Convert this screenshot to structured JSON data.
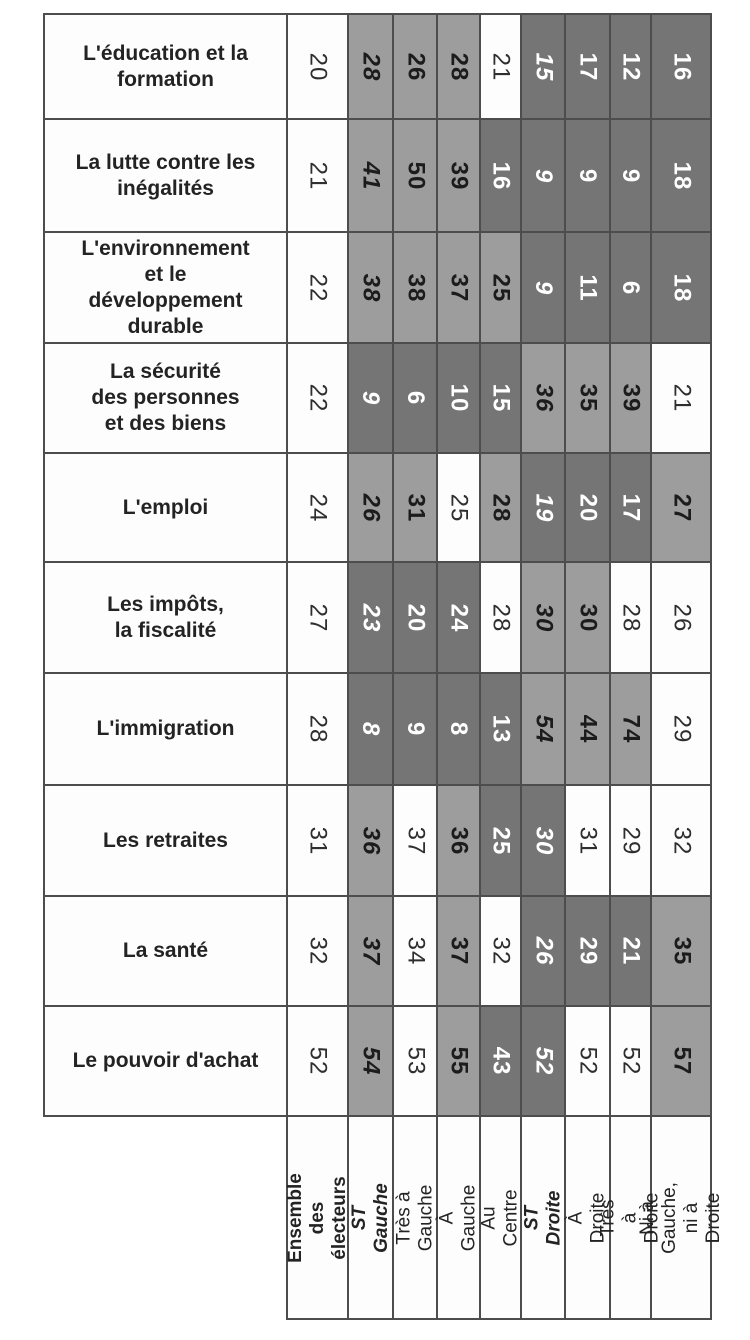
{
  "table": {
    "shading": {
      "higher_bg": "#9d9d9d",
      "higher_text": "#1c1c1c",
      "lower_bg": "#757575",
      "lower_text": "#ffffff",
      "plain_bg": "#fdfdfd",
      "border": "#4d4d4d"
    },
    "columns": [
      {
        "label": "Ensemble\ndes électeurs",
        "bold": true,
        "italic": false
      },
      {
        "label": "ST Gauche",
        "bold": true,
        "italic": true
      },
      {
        "label": "Très à Gauche",
        "bold": false,
        "italic": false
      },
      {
        "label": "À Gauche",
        "bold": false,
        "italic": false
      },
      {
        "label": "Au Centre",
        "bold": false,
        "italic": false
      },
      {
        "label": "ST Droite",
        "bold": true,
        "italic": true
      },
      {
        "label": "À Droite",
        "bold": false,
        "italic": false
      },
      {
        "label": "Très à Droite",
        "bold": false,
        "italic": false
      },
      {
        "label": "Ni à Gauche,\nni à Droite",
        "bold": false,
        "italic": false
      }
    ],
    "rows": [
      {
        "label": "L'éducation et la\nformation",
        "values": [
          {
            "v": "20",
            "s": "n"
          },
          {
            "v": "28",
            "s": "h"
          },
          {
            "v": "26",
            "s": "h"
          },
          {
            "v": "28",
            "s": "h"
          },
          {
            "v": "21",
            "s": "n"
          },
          {
            "v": "15",
            "s": "l"
          },
          {
            "v": "17",
            "s": "l"
          },
          {
            "v": "12",
            "s": "l"
          },
          {
            "v": "16",
            "s": "l"
          }
        ]
      },
      {
        "label": "La lutte contre les\ninégalités",
        "values": [
          {
            "v": "21",
            "s": "n"
          },
          {
            "v": "41",
            "s": "h"
          },
          {
            "v": "50",
            "s": "h"
          },
          {
            "v": "39",
            "s": "h"
          },
          {
            "v": "16",
            "s": "l"
          },
          {
            "v": "9",
            "s": "l"
          },
          {
            "v": "9",
            "s": "l"
          },
          {
            "v": "9",
            "s": "l"
          },
          {
            "v": "18",
            "s": "l"
          }
        ]
      },
      {
        "label": "L'environnement\net le\ndéveloppement\ndurable",
        "values": [
          {
            "v": "22",
            "s": "n"
          },
          {
            "v": "38",
            "s": "h"
          },
          {
            "v": "38",
            "s": "h"
          },
          {
            "v": "37",
            "s": "h"
          },
          {
            "v": "25",
            "s": "h"
          },
          {
            "v": "9",
            "s": "l"
          },
          {
            "v": "11",
            "s": "l"
          },
          {
            "v": "6",
            "s": "l"
          },
          {
            "v": "18",
            "s": "l"
          }
        ]
      },
      {
        "label": "La sécurité\ndes personnes\net des biens",
        "values": [
          {
            "v": "22",
            "s": "n"
          },
          {
            "v": "9",
            "s": "l"
          },
          {
            "v": "6",
            "s": "l"
          },
          {
            "v": "10",
            "s": "l"
          },
          {
            "v": "15",
            "s": "l"
          },
          {
            "v": "36",
            "s": "h"
          },
          {
            "v": "35",
            "s": "h"
          },
          {
            "v": "39",
            "s": "h"
          },
          {
            "v": "21",
            "s": "n"
          }
        ]
      },
      {
        "label": "L'emploi",
        "values": [
          {
            "v": "24",
            "s": "n"
          },
          {
            "v": "26",
            "s": "h"
          },
          {
            "v": "31",
            "s": "h"
          },
          {
            "v": "25",
            "s": "n"
          },
          {
            "v": "28",
            "s": "h"
          },
          {
            "v": "19",
            "s": "l"
          },
          {
            "v": "20",
            "s": "l"
          },
          {
            "v": "17",
            "s": "l"
          },
          {
            "v": "27",
            "s": "h"
          }
        ]
      },
      {
        "label": "Les impôts,\nla fiscalité",
        "values": [
          {
            "v": "27",
            "s": "n"
          },
          {
            "v": "23",
            "s": "l"
          },
          {
            "v": "20",
            "s": "l"
          },
          {
            "v": "24",
            "s": "l"
          },
          {
            "v": "28",
            "s": "n"
          },
          {
            "v": "30",
            "s": "h"
          },
          {
            "v": "30",
            "s": "h"
          },
          {
            "v": "28",
            "s": "n"
          },
          {
            "v": "26",
            "s": "n"
          }
        ]
      },
      {
        "label": "L'immigration",
        "values": [
          {
            "v": "28",
            "s": "n"
          },
          {
            "v": "8",
            "s": "l"
          },
          {
            "v": "9",
            "s": "l"
          },
          {
            "v": "8",
            "s": "l"
          },
          {
            "v": "13",
            "s": "l"
          },
          {
            "v": "54",
            "s": "h"
          },
          {
            "v": "44",
            "s": "h"
          },
          {
            "v": "74",
            "s": "h"
          },
          {
            "v": "29",
            "s": "n"
          }
        ]
      },
      {
        "label": "Les retraites",
        "values": [
          {
            "v": "31",
            "s": "n"
          },
          {
            "v": "36",
            "s": "h"
          },
          {
            "v": "37",
            "s": "n"
          },
          {
            "v": "36",
            "s": "h"
          },
          {
            "v": "25",
            "s": "l"
          },
          {
            "v": "30",
            "s": "l"
          },
          {
            "v": "31",
            "s": "n"
          },
          {
            "v": "29",
            "s": "n"
          },
          {
            "v": "32",
            "s": "n"
          }
        ]
      },
      {
        "label": "La santé",
        "values": [
          {
            "v": "32",
            "s": "n"
          },
          {
            "v": "37",
            "s": "h"
          },
          {
            "v": "34",
            "s": "n"
          },
          {
            "v": "37",
            "s": "h"
          },
          {
            "v": "32",
            "s": "n"
          },
          {
            "v": "26",
            "s": "l"
          },
          {
            "v": "29",
            "s": "l"
          },
          {
            "v": "21",
            "s": "l"
          },
          {
            "v": "35",
            "s": "h"
          }
        ]
      },
      {
        "label": "Le pouvoir d'achat",
        "values": [
          {
            "v": "52",
            "s": "n"
          },
          {
            "v": "54",
            "s": "h"
          },
          {
            "v": "53",
            "s": "n"
          },
          {
            "v": "55",
            "s": "h"
          },
          {
            "v": "43",
            "s": "l"
          },
          {
            "v": "52",
            "s": "l"
          },
          {
            "v": "52",
            "s": "n"
          },
          {
            "v": "52",
            "s": "n"
          },
          {
            "v": "57",
            "s": "h"
          }
        ]
      }
    ]
  }
}
